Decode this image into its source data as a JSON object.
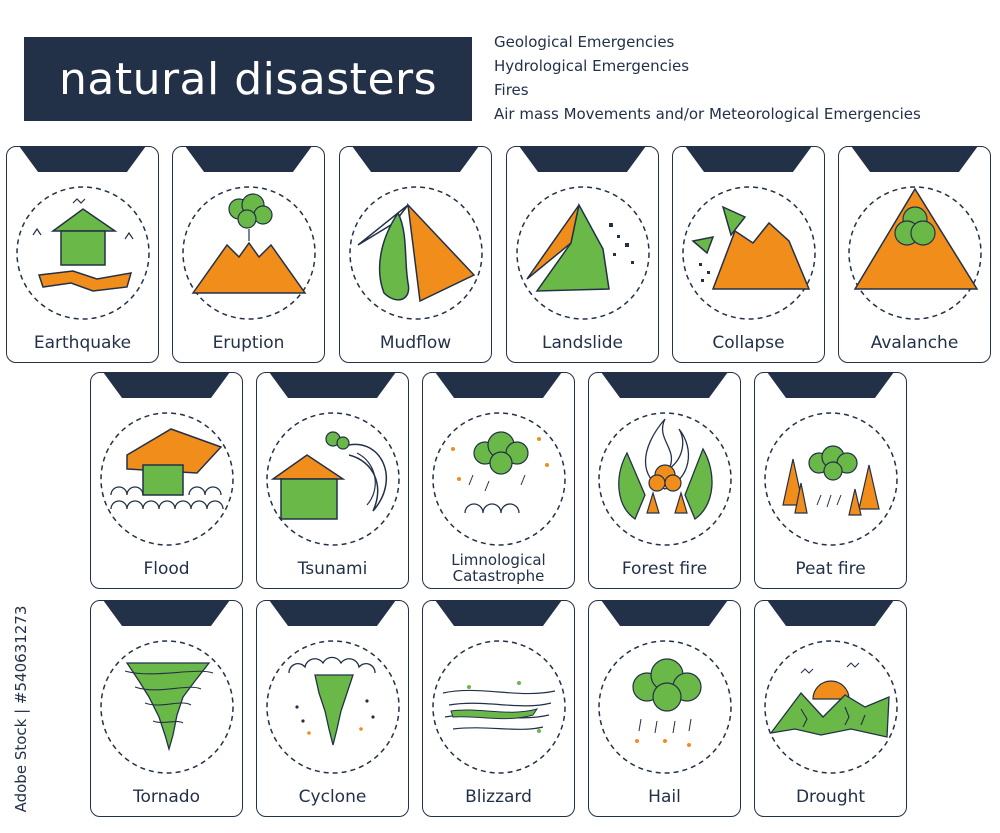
{
  "title": "natural disasters",
  "legend": [
    "Geological Emergencies",
    "Hydrological Emergencies",
    "Fires",
    "Air mass Movements and/or Meteorological Emergencies"
  ],
  "colors": {
    "navy": "#233148",
    "green": "#6ab847",
    "orange": "#f08d1b"
  },
  "cards": {
    "earthquake": "Earthquake",
    "eruption": "Eruption",
    "mudflow": "Mudflow",
    "landslide": "Landslide",
    "collapse": "Collapse",
    "avalanche": "Avalanche",
    "flood": "Flood",
    "tsunami": "Tsunami",
    "limnological": "Limnological Catastrophe",
    "forest_fire": "Forest fire",
    "peat_fire": "Peat fire",
    "tornado": "Tornado",
    "cyclone": "Cyclone",
    "blizzard": "Blizzard",
    "hail": "Hail",
    "drought": "Drought"
  },
  "stock_id": "Adobe Stock | #540631273"
}
